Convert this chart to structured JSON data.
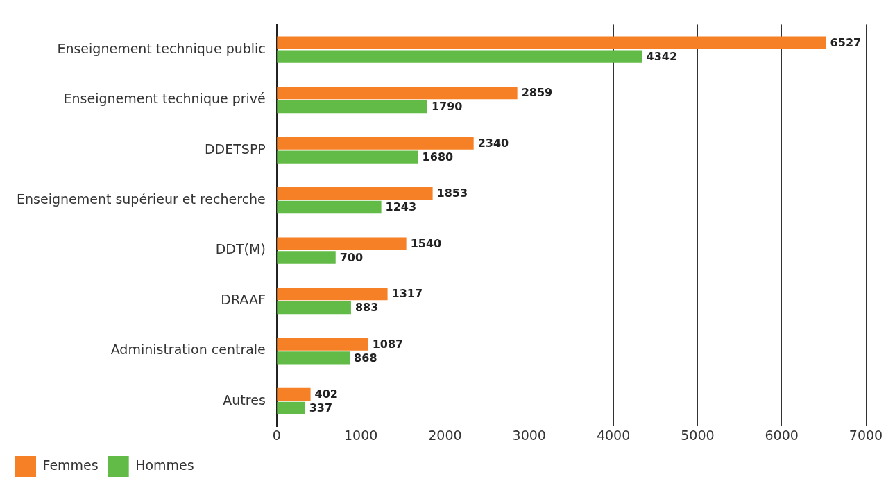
{
  "chart_data": {
    "type": "bar",
    "orientation": "horizontal",
    "categories": [
      "Enseignement technique public",
      "Enseignement technique privé",
      "DDETSPP",
      "Enseignement supérieur et recherche",
      "DDT(M)",
      "DRAAF",
      "Administration centrale",
      "Autres"
    ],
    "series": [
      {
        "name": "Femmes",
        "color": "#f58025",
        "values": [
          6527,
          2859,
          2340,
          1853,
          1540,
          1317,
          1087,
          402
        ]
      },
      {
        "name": "Hommes",
        "color": "#62bb46",
        "values": [
          4342,
          1790,
          1680,
          1243,
          700,
          883,
          868,
          337
        ]
      }
    ],
    "xlim": [
      0,
      7000
    ],
    "xticks": [
      0,
      1000,
      2000,
      3000,
      4000,
      5000,
      6000,
      7000
    ],
    "grid": "x",
    "legend": "bottom left",
    "data_labels": true
  }
}
